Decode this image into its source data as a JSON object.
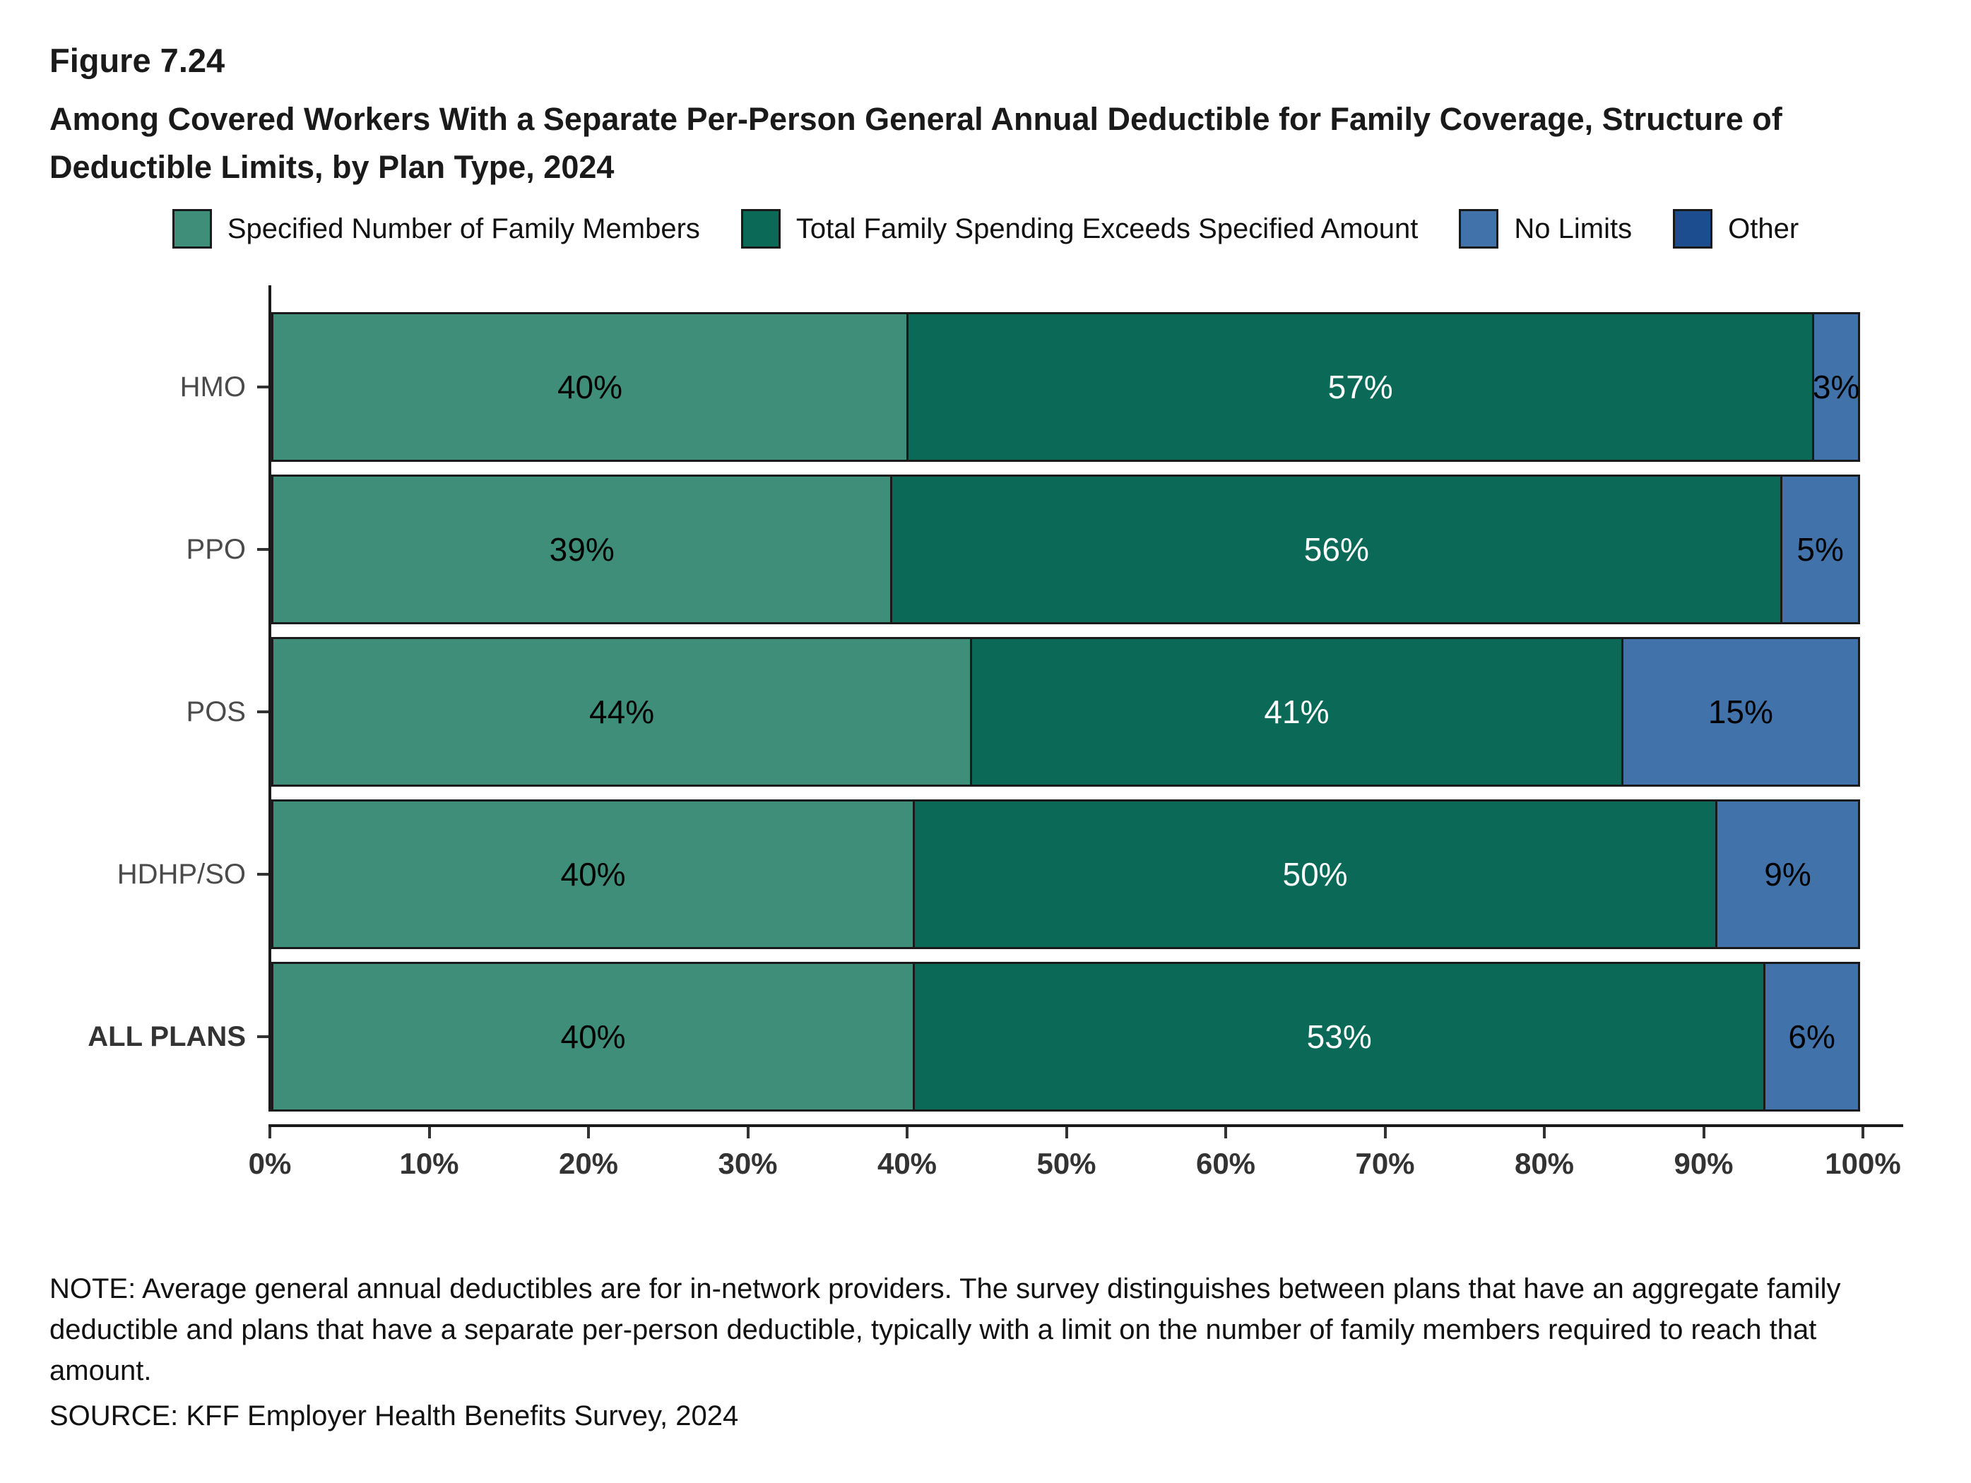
{
  "figure": {
    "number": "Figure 7.24",
    "title": "Among Covered Workers With a Separate Per-Person General Annual Deductible for Family Coverage, Structure of Deductible Limits, by Plan Type, 2024"
  },
  "chart_data": {
    "type": "bar",
    "orientation": "horizontal",
    "stacked": true,
    "title": "Among Covered Workers With a Separate Per-Person General Annual Deductible for Family Coverage, Structure of Deductible Limits, by Plan Type, 2024",
    "categories": [
      "HMO",
      "PPO",
      "POS",
      "HDHP/SO",
      "ALL PLANS"
    ],
    "series": [
      {
        "name": "Specified Number of Family Members",
        "color": "#3E8E7A",
        "label_color": "#000000",
        "values": [
          40,
          39,
          44,
          40,
          40
        ]
      },
      {
        "name": "Total Family Spending Exceeds Specified Amount",
        "color": "#0B6A57",
        "label_color": "#FFFFFF",
        "values": [
          57,
          56,
          41,
          50,
          53
        ]
      },
      {
        "name": "No Limits",
        "color": "#4172AA",
        "label_color": "#000000",
        "values": [
          3,
          5,
          15,
          9,
          6
        ]
      },
      {
        "name": "Other",
        "color": "#1C4E8F",
        "label_color": "#FFFFFF",
        "values": [
          0,
          0,
          0,
          0,
          0
        ]
      }
    ],
    "x_ticks": [
      "0%",
      "10%",
      "20%",
      "30%",
      "40%",
      "50%",
      "60%",
      "70%",
      "80%",
      "90%",
      "100%"
    ],
    "xlim": [
      0,
      100
    ],
    "value_suffix": "%",
    "legend_position": "top",
    "grid": false
  },
  "footer": {
    "note": "NOTE: Average general annual deductibles are for in-network providers. The survey distinguishes between plans that have an aggregate family deductible and plans that have a separate per-person deductible, typically with a limit on the number of family members required to reach that amount.",
    "source": "SOURCE: KFF Employer Health Benefits Survey, 2024"
  }
}
